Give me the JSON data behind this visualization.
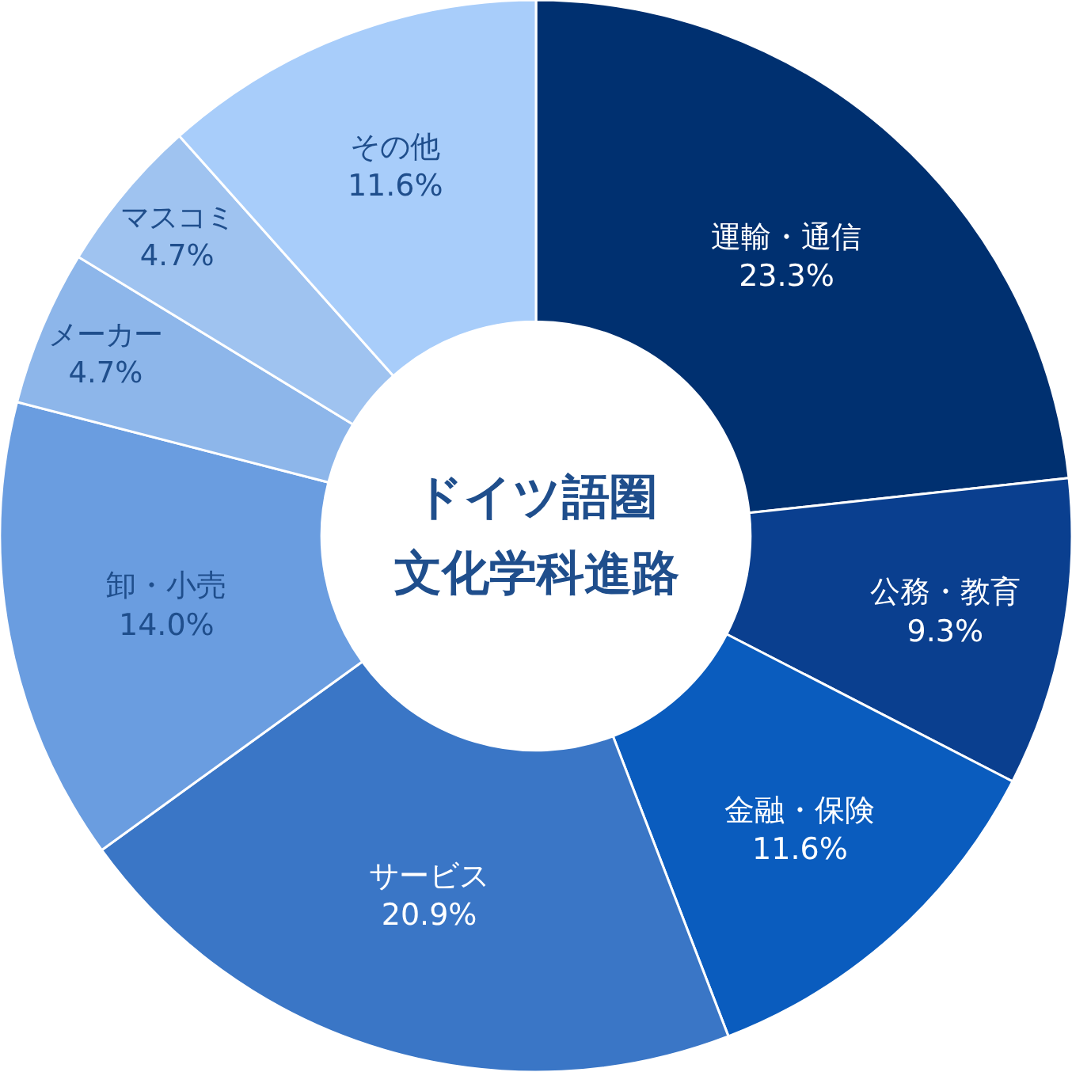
{
  "chart_data": {
    "type": "donut",
    "title": "ドイツ語圏",
    "subtitle": "文化学科進路",
    "categories": [
      "運輸・通信",
      "公務・教育",
      "金融・保険",
      "サービス",
      "卸・小売",
      "メーカー",
      "マスコミ",
      "その他"
    ],
    "values": [
      23.3,
      9.3,
      11.6,
      20.9,
      14.0,
      4.7,
      4.7,
      11.6
    ],
    "value_labels": [
      "23.3%",
      "9.3%",
      "11.6%",
      "20.9%",
      "14.0%",
      "4.7%",
      "4.7%",
      "11.6%"
    ],
    "colors": [
      "#003070",
      "#0a3f8f",
      "#0a5cbe",
      "#3a76c6",
      "#6a9de0",
      "#8db6ea",
      "#9fc3f0",
      "#a8cdfa"
    ],
    "legend": false
  }
}
